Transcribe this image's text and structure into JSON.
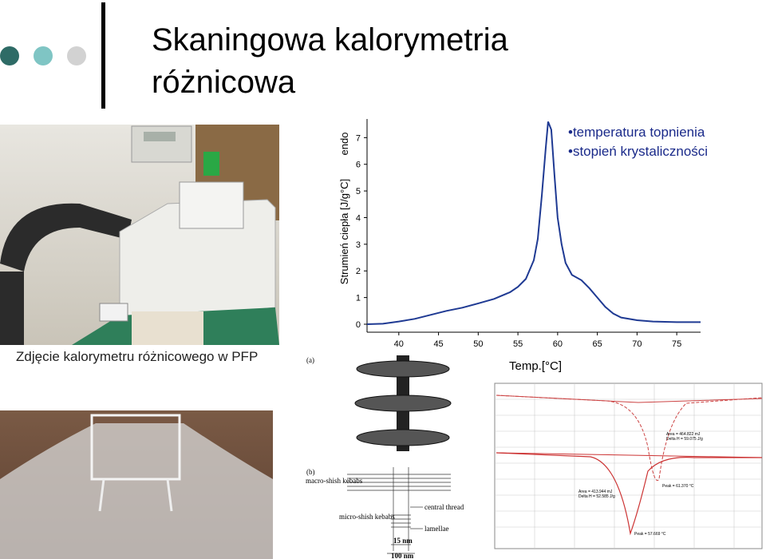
{
  "header": {
    "title": [
      "Skaningowa kalorymetria",
      "różnicowa"
    ]
  },
  "bullets": [
    "temperatura topnienia",
    "stopień krystaliczności"
  ],
  "photo_caption": "Zdjęcie kalorymetru różnicowego w PFP",
  "dsc_chart": {
    "type": "line",
    "y_label": "Strumień ciepła [J/g°C]",
    "x_label": "Temp.[°C]",
    "annotation": "endo",
    "x": [
      36,
      38,
      40,
      42,
      44,
      46,
      48,
      50,
      52,
      54,
      55,
      56,
      57,
      57.5,
      58,
      58.5,
      58.8,
      59.2,
      59.6,
      60,
      60.5,
      61,
      61.8,
      63,
      64,
      65,
      66,
      67,
      68,
      70,
      72,
      75,
      78
    ],
    "values": [
      0,
      0.02,
      0.1,
      0.2,
      0.35,
      0.5,
      0.62,
      0.78,
      0.95,
      1.2,
      1.4,
      1.7,
      2.4,
      3.2,
      4.8,
      6.6,
      7.6,
      7.3,
      5.6,
      4.0,
      3.0,
      2.3,
      1.85,
      1.65,
      1.35,
      1.0,
      0.65,
      0.4,
      0.25,
      0.15,
      0.1,
      0.08,
      0.08
    ],
    "color": "#1f3a93",
    "xlim": [
      36,
      78
    ],
    "ylim": [
      -0.3,
      7.7
    ],
    "xticks": [
      40,
      45,
      50,
      55,
      60,
      65,
      70,
      75
    ],
    "yticks": [
      0,
      1,
      2,
      3,
      4,
      5,
      6,
      7
    ]
  },
  "structure_figure": {
    "panel_a": "(a)",
    "panel_b": "(b)",
    "labels": [
      "macro-shish kebabs",
      "micro-shish kebabs",
      "central thread",
      "lamellae",
      "15 nm",
      "100 nm"
    ]
  },
  "small_dsc": {
    "annotations": [
      "Area = 464.822 mJ",
      "Delta H = 59.075 J/g",
      "Peak = 61.370 °C",
      "Area = 413.944 mJ",
      "Delta H = 52.585 J/g",
      "Peak = 57.669 °C"
    ]
  }
}
